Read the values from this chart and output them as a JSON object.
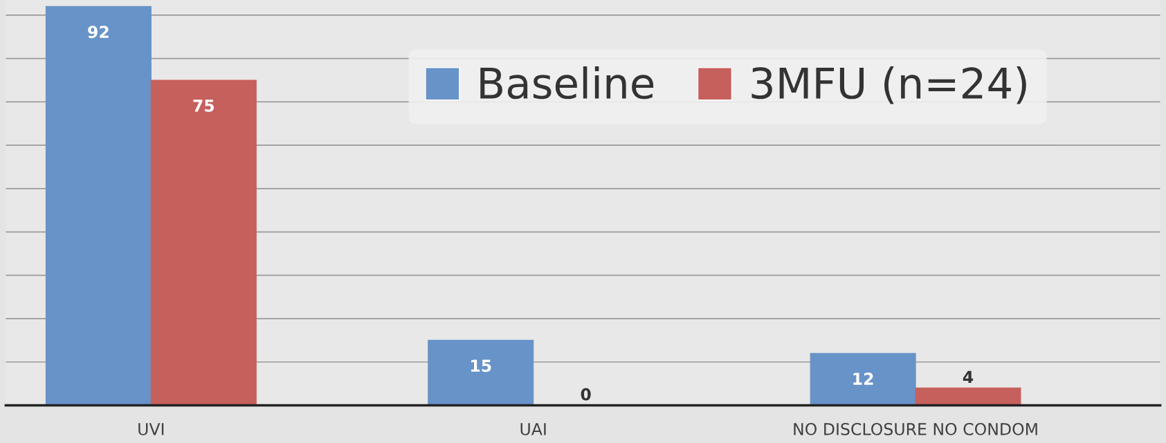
{
  "chart_data": {
    "type": "bar",
    "categories": [
      "UVI",
      "UAI",
      "NO DISCLOSURE NO CONDOM"
    ],
    "series": [
      {
        "name": "Baseline",
        "color": "#6793c8",
        "values": [
          92,
          15,
          12
        ]
      },
      {
        "name": "3MFU (n=24)",
        "color": "#c6605d",
        "values": [
          75,
          0,
          4
        ]
      }
    ],
    "ylim": [
      0,
      93.5
    ],
    "yticks": [
      {
        "value": 0,
        "label": null
      },
      {
        "value": 10,
        "label": null
      },
      {
        "value": 20,
        "label": null
      },
      {
        "value": 30,
        "label": null
      },
      {
        "value": 40,
        "label": null
      },
      {
        "value": 50,
        "label": null
      },
      {
        "value": 60,
        "label": null
      },
      {
        "value": 70,
        "label": null
      },
      {
        "value": 80,
        "label": null
      },
      {
        "value": 90,
        "label": null
      }
    ],
    "tick_labels": "x",
    "grid": "y",
    "legend": "top right",
    "data_labels": true
  }
}
